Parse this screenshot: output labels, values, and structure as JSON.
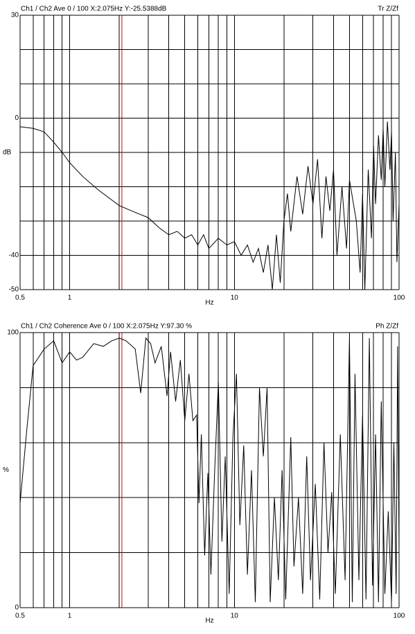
{
  "chart_data": [
    {
      "type": "line",
      "title": "Ch1 / Ch2  Ave 0 / 100  X:2.075Hz  Y:-25.5388dB",
      "corner_label": "Tr Z/Zf",
      "xlabel": "Hz",
      "ylabel": "dB",
      "log_x": true,
      "color": "#000000",
      "cursor_x": 2.075,
      "cursor_color": "#cc0000",
      "xlim": [
        0.5,
        100
      ],
      "xticks": [
        0.5,
        1,
        10,
        100
      ],
      "xminorticks": [
        0.6,
        0.7,
        0.8,
        0.9,
        2,
        3,
        4,
        5,
        6,
        7,
        8,
        9,
        20,
        30,
        40,
        50,
        60,
        70,
        80,
        90
      ],
      "ylim": [
        -50,
        30
      ],
      "yticks": [
        30,
        0,
        -40,
        -50
      ],
      "ygrid": [
        20,
        10,
        -10,
        -20,
        -30
      ],
      "x": [
        0.5,
        0.6,
        0.7,
        0.8,
        0.9,
        1,
        1.2,
        1.5,
        2,
        2.5,
        3,
        3.5,
        4,
        4.5,
        5,
        5.5,
        6,
        6.5,
        7,
        8,
        9,
        10,
        11,
        12,
        13,
        14,
        15,
        16,
        17,
        18,
        19,
        20,
        21,
        22,
        24,
        26,
        28,
        30,
        32,
        34,
        36,
        38,
        40,
        42,
        45,
        48,
        50,
        55,
        58,
        60,
        62,
        65,
        68,
        70,
        72,
        75,
        78,
        80,
        82,
        85,
        88,
        90,
        92,
        95,
        97,
        100
      ],
      "values": [
        -2.5,
        -3,
        -4,
        -7,
        -10,
        -13,
        -17,
        -21,
        -25.5,
        -27.5,
        -29,
        -32,
        -34,
        -33,
        -35,
        -34,
        -37,
        -34,
        -38,
        -35,
        -37,
        -36,
        -40,
        -37,
        -42,
        -38,
        -45,
        -37,
        -50,
        -34,
        -48,
        -30,
        -22,
        -33,
        -17,
        -28,
        -14,
        -25,
        -12,
        -35,
        -17,
        -27,
        -15,
        -40,
        -20,
        -38,
        -18,
        -30,
        -45,
        -22,
        -50,
        -15,
        -35,
        -8,
        -25,
        -5,
        -18,
        -3,
        -20,
        -1,
        -15,
        -4,
        -30,
        -10,
        -42,
        -25
      ]
    },
    {
      "type": "line",
      "title": "Ch1 / Ch2  Coherence Ave 0 / 100  X:2.075Hz  Y:97.30 %",
      "corner_label": "Ph Z/Zf",
      "xlabel": "Hz",
      "ylabel": "%",
      "log_x": true,
      "color": "#000000",
      "cursor_x": 2.075,
      "cursor_color": "#cc0000",
      "xlim": [
        0.5,
        100
      ],
      "xticks": [
        0.5,
        1,
        10,
        100
      ],
      "xminorticks": [
        0.6,
        0.7,
        0.8,
        0.9,
        2,
        3,
        4,
        5,
        6,
        7,
        8,
        9,
        20,
        30,
        40,
        50,
        60,
        70,
        80,
        90
      ],
      "ylim": [
        0,
        100
      ],
      "yticks": [
        100,
        0
      ],
      "ygrid": [
        80,
        60,
        40,
        20
      ],
      "x": [
        0.5,
        0.55,
        0.6,
        0.7,
        0.8,
        0.9,
        1,
        1.1,
        1.2,
        1.4,
        1.6,
        1.8,
        2,
        2.2,
        2.5,
        2.7,
        2.9,
        3.1,
        3.3,
        3.6,
        3.9,
        4.1,
        4.4,
        4.7,
        5,
        5.3,
        5.6,
        5.9,
        6.1,
        6.3,
        6.6,
        6.9,
        7.2,
        7.6,
        8,
        8.4,
        8.8,
        9.3,
        9.8,
        10.3,
        10.8,
        11.4,
        12,
        12.7,
        13.4,
        14.2,
        15,
        15.8,
        16.5,
        17.5,
        18.5,
        19.5,
        20.5,
        22,
        23,
        24.5,
        26,
        27.5,
        29,
        31,
        33,
        35,
        37,
        39,
        41,
        44,
        47,
        50,
        52,
        54,
        57,
        60,
        63,
        66,
        69,
        72,
        75,
        78,
        82,
        86,
        90,
        93,
        96,
        98,
        100
      ],
      "values": [
        38,
        65,
        88,
        94,
        97,
        89,
        93,
        90,
        91,
        96,
        95,
        97,
        98,
        97,
        94,
        78,
        98,
        96,
        89,
        95,
        77,
        93,
        75,
        90,
        68,
        85,
        68,
        70,
        38,
        63,
        19,
        49,
        12,
        50,
        82,
        24,
        55,
        5,
        62,
        85,
        30,
        59,
        12,
        50,
        2,
        80,
        55,
        80,
        2,
        40,
        10,
        50,
        3,
        62,
        15,
        40,
        5,
        55,
        10,
        45,
        3,
        60,
        20,
        42,
        5,
        63,
        10,
        98,
        2,
        85,
        10,
        70,
        3,
        98,
        8,
        63,
        2,
        75,
        5,
        35,
        2,
        60,
        5,
        95,
        20
      ]
    }
  ]
}
